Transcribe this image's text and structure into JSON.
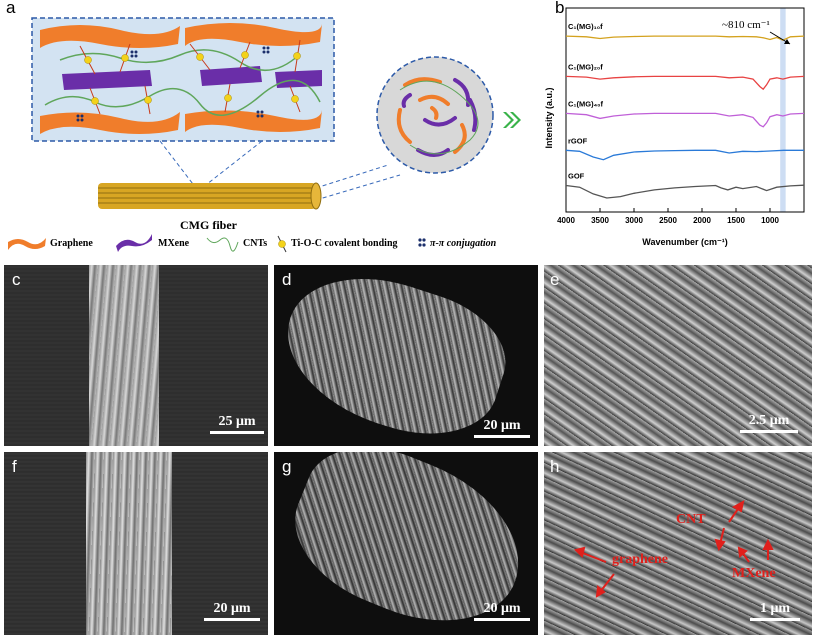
{
  "panels": {
    "a": {
      "label": "a",
      "fiber_label": "CMG fiber",
      "legend": {
        "graphene": "Graphene",
        "mxene": "MXene",
        "cnts": "CNTs",
        "tioc": "Ti-O-C covalent bonding",
        "pipi": "π-π conjugation"
      },
      "colors": {
        "graphene": "#f07d2b",
        "mxene": "#6a2ea8",
        "cnt": "#5fa65b",
        "frame": "#2d5aa8"
      }
    },
    "b": {
      "label": "b",
      "annotation": "~810 cm⁻¹"
    },
    "c": {
      "label": "c",
      "scale": "25 μm"
    },
    "d": {
      "label": "d",
      "scale": "20 μm"
    },
    "e": {
      "label": "e",
      "scale": "2.5 μm"
    },
    "f": {
      "label": "f",
      "scale": "20 μm"
    },
    "g": {
      "label": "g",
      "scale": "20 μm"
    },
    "h": {
      "label": "h",
      "scale": "1 μm",
      "annotations": {
        "cnt": "CNT",
        "graphene": "graphene",
        "mxene": "MXene"
      }
    }
  },
  "chart_data": {
    "type": "line",
    "xlabel": "Wavenumber (cm⁻¹)",
    "ylabel": "Intensity (a.u.)",
    "xlim": [
      4000,
      500
    ],
    "x_reversed": true,
    "xticks": [
      "4000",
      "3500",
      "3000",
      "2500",
      "2000",
      "1500",
      "1000"
    ],
    "highlight_band": [
      850,
      770
    ],
    "series": [
      {
        "name": "C₁(MG)₁₀f",
        "color": "#d4a21e",
        "x": [
          4000,
          3700,
          3500,
          3300,
          3000,
          2700,
          2400,
          2100,
          1800,
          1600,
          1400,
          1200,
          1100,
          1000,
          900,
          810,
          700,
          500
        ],
        "y": [
          5.0,
          4.98,
          4.93,
          4.97,
          4.99,
          5.0,
          5.0,
          5.0,
          5.0,
          4.98,
          4.99,
          4.98,
          4.95,
          4.9,
          4.96,
          4.88,
          4.98,
          5.0
        ]
      },
      {
        "name": "C₁(MG)₂₀f",
        "color": "#e84343",
        "x": [
          4000,
          3700,
          3500,
          3300,
          3000,
          2700,
          2400,
          2100,
          1800,
          1600,
          1400,
          1250,
          1150,
          1100,
          1050,
          1000,
          900,
          810,
          700,
          500
        ],
        "y": [
          3.8,
          3.78,
          3.72,
          3.76,
          3.79,
          3.8,
          3.8,
          3.8,
          3.8,
          3.76,
          3.78,
          3.72,
          3.5,
          3.42,
          3.55,
          3.72,
          3.76,
          3.72,
          3.78,
          3.8
        ]
      },
      {
        "name": "C₁(MG)₄₀f",
        "color": "#c060d8",
        "x": [
          4000,
          3700,
          3500,
          3300,
          3000,
          2700,
          2400,
          2100,
          1800,
          1600,
          1400,
          1250,
          1150,
          1100,
          1050,
          1000,
          900,
          810,
          700,
          500
        ],
        "y": [
          2.7,
          2.66,
          2.55,
          2.62,
          2.68,
          2.7,
          2.7,
          2.7,
          2.7,
          2.62,
          2.66,
          2.58,
          2.35,
          2.3,
          2.42,
          2.6,
          2.66,
          2.62,
          2.68,
          2.7
        ]
      },
      {
        "name": "rGOF",
        "color": "#2a7ad8",
        "x": [
          4000,
          3800,
          3600,
          3450,
          3300,
          3000,
          2700,
          2400,
          2100,
          1800,
          1600,
          1400,
          1200,
          1000,
          800,
          500
        ],
        "y": [
          1.6,
          1.57,
          1.4,
          1.32,
          1.45,
          1.55,
          1.58,
          1.59,
          1.6,
          1.6,
          1.52,
          1.57,
          1.56,
          1.58,
          1.6,
          1.6
        ]
      },
      {
        "name": "GOF",
        "color": "#555555",
        "x": [
          4000,
          3800,
          3600,
          3400,
          3200,
          3000,
          2700,
          2400,
          2100,
          1800,
          1720,
          1620,
          1500,
          1400,
          1200,
          1050,
          900,
          700,
          500
        ],
        "y": [
          0.55,
          0.5,
          0.3,
          0.18,
          0.22,
          0.32,
          0.42,
          0.48,
          0.52,
          0.55,
          0.48,
          0.42,
          0.5,
          0.46,
          0.52,
          0.4,
          0.5,
          0.54,
          0.56
        ]
      }
    ]
  }
}
